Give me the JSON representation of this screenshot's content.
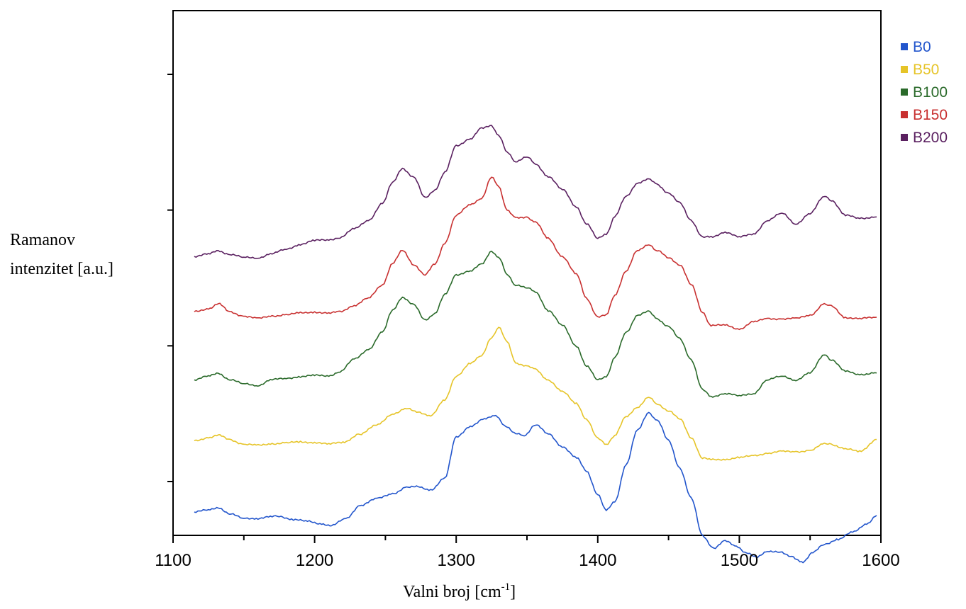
{
  "chart_data": {
    "type": "line",
    "xlabel": "Valni broj [cm",
    "xlabel_sup": "-1",
    "xlabel_end": "]",
    "ylabel_lines": [
      "Ramanov",
      "intenzitet [a.u.]"
    ],
    "xlim": [
      1100,
      1600
    ],
    "ylim": [
      0,
      7
    ],
    "x_ticks": [
      "1100",
      "1200",
      "1300",
      "1400",
      "1500",
      "1600"
    ],
    "y_ticks": [
      1,
      3,
      5,
      7
    ],
    "grid": false,
    "legend_position": "right",
    "series": [
      {
        "name": "B0",
        "color": "#2255cc",
        "x": [
          1115,
          1125,
          1132,
          1140,
          1150,
          1160,
          1170,
          1175,
          1185,
          1195,
          1205,
          1212,
          1222,
          1232,
          1245,
          1255,
          1265,
          1272,
          1282,
          1292,
          1300,
          1310,
          1320,
          1328,
          1335,
          1342,
          1348,
          1356,
          1365,
          1375,
          1385,
          1392,
          1400,
          1406,
          1412,
          1420,
          1428,
          1436,
          1442,
          1450,
          1458,
          1466,
          1474,
          1482,
          1490,
          1498,
          1505,
          1512,
          1520,
          1528,
          1536,
          1545,
          1552,
          1560,
          1570,
          1580,
          1590,
          1597
        ],
        "y": [
          0.55,
          0.58,
          0.62,
          0.52,
          0.46,
          0.46,
          0.48,
          0.49,
          0.44,
          0.41,
          0.38,
          0.35,
          0.45,
          0.65,
          0.75,
          0.82,
          0.92,
          0.92,
          0.88,
          1.05,
          1.65,
          1.82,
          1.92,
          1.97,
          1.82,
          1.7,
          1.68,
          1.84,
          1.7,
          1.52,
          1.35,
          1.15,
          0.82,
          0.57,
          0.7,
          1.25,
          1.75,
          2.02,
          1.9,
          1.6,
          1.2,
          0.75,
          0.2,
          0.02,
          0.12,
          0.05,
          -0.05,
          -0.12,
          -0.02,
          -0.04,
          -0.1,
          -0.18,
          -0.05,
          0.08,
          0.15,
          0.25,
          0.38,
          0.5
        ]
      },
      {
        "name": "B50",
        "color": "#e6c428",
        "x": [
          1115,
          1125,
          1132,
          1140,
          1150,
          1160,
          1170,
          1180,
          1190,
          1200,
          1210,
          1220,
          1232,
          1245,
          1255,
          1265,
          1272,
          1282,
          1292,
          1300,
          1310,
          1318,
          1325,
          1330,
          1336,
          1342,
          1350,
          1356,
          1365,
          1375,
          1385,
          1392,
          1400,
          1406,
          1412,
          1420,
          1428,
          1436,
          1442,
          1450,
          1458,
          1466,
          1474,
          1480,
          1490,
          1500,
          1510,
          1520,
          1530,
          1540,
          1550,
          1560,
          1565,
          1575,
          1585,
          1597
        ],
        "y": [
          1.6,
          1.65,
          1.68,
          1.62,
          1.55,
          1.53,
          1.56,
          1.57,
          1.58,
          1.58,
          1.55,
          1.58,
          1.7,
          1.84,
          2.0,
          2.08,
          2.02,
          1.98,
          2.2,
          2.55,
          2.75,
          2.85,
          3.12,
          3.28,
          3.05,
          2.75,
          2.7,
          2.65,
          2.5,
          2.32,
          2.15,
          1.92,
          1.63,
          1.55,
          1.68,
          1.95,
          2.1,
          2.24,
          2.14,
          2.05,
          1.92,
          1.65,
          1.35,
          1.32,
          1.33,
          1.35,
          1.38,
          1.42,
          1.44,
          1.44,
          1.46,
          1.55,
          1.55,
          1.48,
          1.44,
          1.62
        ]
      },
      {
        "name": "B100",
        "color": "#2a6a2a",
        "x": [
          1115,
          1125,
          1132,
          1140,
          1150,
          1160,
          1170,
          1180,
          1190,
          1200,
          1210,
          1218,
          1228,
          1238,
          1248,
          1255,
          1262,
          1270,
          1278,
          1285,
          1292,
          1300,
          1310,
          1318,
          1325,
          1330,
          1336,
          1342,
          1350,
          1356,
          1365,
          1375,
          1385,
          1392,
          1400,
          1406,
          1412,
          1420,
          1428,
          1436,
          1442,
          1450,
          1458,
          1466,
          1474,
          1480,
          1490,
          1500,
          1510,
          1520,
          1530,
          1540,
          1550,
          1560,
          1565,
          1575,
          1585,
          1597
        ],
        "y": [
          2.5,
          2.55,
          2.6,
          2.5,
          2.44,
          2.42,
          2.5,
          2.52,
          2.55,
          2.56,
          2.56,
          2.62,
          2.8,
          2.95,
          3.2,
          3.52,
          3.72,
          3.6,
          3.38,
          3.48,
          3.75,
          4.05,
          4.1,
          4.2,
          4.4,
          4.3,
          4.05,
          3.9,
          3.85,
          3.8,
          3.52,
          3.3,
          3.0,
          2.7,
          2.5,
          2.55,
          2.82,
          3.2,
          3.45,
          3.5,
          3.4,
          3.28,
          3.1,
          2.8,
          2.35,
          2.25,
          2.3,
          2.26,
          2.3,
          2.5,
          2.55,
          2.5,
          2.6,
          2.87,
          2.8,
          2.62,
          2.58,
          2.6
        ]
      },
      {
        "name": "B150",
        "color": "#c83030",
        "x": [
          1115,
          1125,
          1132,
          1140,
          1150,
          1160,
          1170,
          1180,
          1190,
          1200,
          1210,
          1218,
          1228,
          1238,
          1248,
          1255,
          1262,
          1270,
          1278,
          1285,
          1292,
          1300,
          1310,
          1318,
          1325,
          1330,
          1336,
          1342,
          1350,
          1356,
          1365,
          1375,
          1385,
          1392,
          1400,
          1406,
          1412,
          1420,
          1428,
          1436,
          1442,
          1450,
          1458,
          1466,
          1474,
          1480,
          1490,
          1500,
          1510,
          1520,
          1530,
          1540,
          1550,
          1560,
          1565,
          1575,
          1585,
          1597
        ],
        "y": [
          3.5,
          3.55,
          3.62,
          3.5,
          3.44,
          3.4,
          3.44,
          3.46,
          3.48,
          3.5,
          3.48,
          3.5,
          3.6,
          3.7,
          3.9,
          4.22,
          4.4,
          4.2,
          4.05,
          4.2,
          4.52,
          4.92,
          5.08,
          5.18,
          5.48,
          5.35,
          5.0,
          4.88,
          4.9,
          4.82,
          4.58,
          4.32,
          4.05,
          3.7,
          3.43,
          3.45,
          3.75,
          4.1,
          4.4,
          4.5,
          4.4,
          4.3,
          4.2,
          3.9,
          3.5,
          3.3,
          3.3,
          3.25,
          3.35,
          3.4,
          3.4,
          3.4,
          3.45,
          3.62,
          3.58,
          3.42,
          3.4,
          3.42
        ]
      },
      {
        "name": "B200",
        "color": "#5a2060",
        "x": [
          1115,
          1125,
          1132,
          1140,
          1150,
          1160,
          1170,
          1180,
          1190,
          1200,
          1210,
          1218,
          1228,
          1238,
          1248,
          1255,
          1262,
          1270,
          1278,
          1285,
          1292,
          1300,
          1310,
          1318,
          1325,
          1330,
          1336,
          1342,
          1350,
          1356,
          1365,
          1375,
          1385,
          1392,
          1400,
          1406,
          1412,
          1420,
          1428,
          1436,
          1442,
          1450,
          1458,
          1466,
          1474,
          1480,
          1490,
          1500,
          1510,
          1520,
          1530,
          1540,
          1550,
          1560,
          1565,
          1575,
          1585,
          1597
        ],
        "y": [
          4.32,
          4.35,
          4.4,
          4.35,
          4.3,
          4.3,
          4.36,
          4.42,
          4.5,
          4.55,
          4.56,
          4.6,
          4.72,
          4.85,
          5.1,
          5.4,
          5.62,
          5.48,
          5.18,
          5.3,
          5.55,
          5.95,
          6.05,
          6.2,
          6.25,
          6.1,
          5.85,
          5.72,
          5.78,
          5.68,
          5.5,
          5.3,
          5.05,
          4.8,
          4.58,
          4.65,
          4.9,
          5.2,
          5.4,
          5.45,
          5.38,
          5.25,
          5.1,
          4.85,
          4.6,
          4.6,
          4.68,
          4.6,
          4.65,
          4.85,
          4.95,
          4.8,
          4.95,
          5.2,
          5.15,
          4.92,
          4.88,
          4.9
        ]
      }
    ]
  }
}
